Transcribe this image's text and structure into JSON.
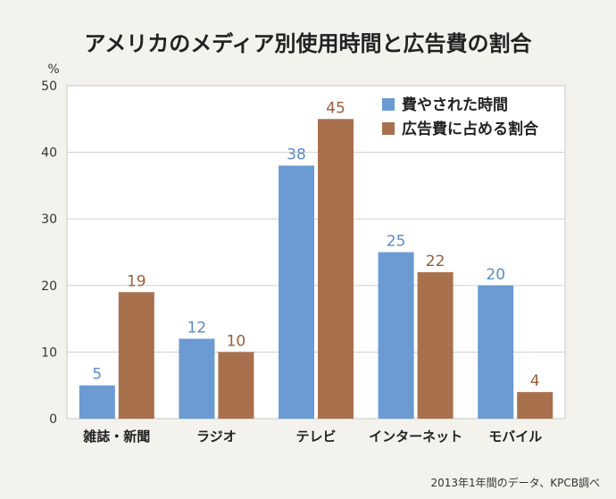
{
  "chart_data": {
    "type": "bar",
    "title": "アメリカのメディア別使用時間と広告費の割合",
    "y_unit": "%",
    "ylim": [
      0,
      50
    ],
    "yticks": [
      0,
      10,
      20,
      30,
      40,
      50
    ],
    "grid": true,
    "legend_position": "top-right",
    "categories": [
      "雑誌・新聞",
      "ラジオ",
      "テレビ",
      "インターネット",
      "モバイル"
    ],
    "series": [
      {
        "name": "費やされた時間",
        "color": "#6b9bd2",
        "label_color": "#5b8cc6",
        "values": [
          5,
          12,
          38,
          25,
          20
        ]
      },
      {
        "name": "広告費に占める割合",
        "color": "#a9704d",
        "label_color": "#9a5e3c",
        "values": [
          19,
          10,
          45,
          22,
          4
        ]
      }
    ],
    "source_note": "2013年1年間のデータ、KPCB調べ"
  }
}
